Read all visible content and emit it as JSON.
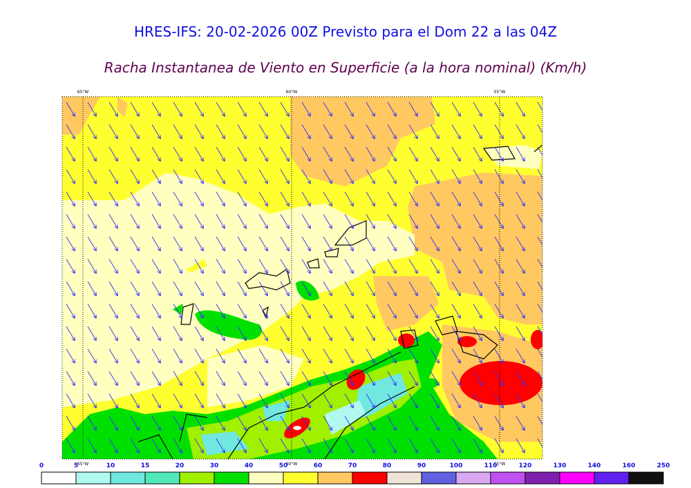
{
  "header": {
    "title": "HRES-IFS: 20-02-2026 00Z Previsto para el Dom 22 a las 04Z",
    "subtitle": "Racha Instantanea de Viento en Superficie (a la hora nominal) (Km/h)"
  },
  "map": {
    "lon_labels_top": [
      "65°W",
      "60°W",
      "55°W"
    ],
    "lon_labels_bottom": [
      "65°W",
      "60°W",
      "55°W"
    ]
  },
  "legend": {
    "labels": [
      0,
      5,
      10,
      15,
      20,
      30,
      40,
      50,
      60,
      70,
      80,
      90,
      100,
      110,
      120,
      130,
      140,
      160,
      250
    ],
    "colors": [
      "#ffffff",
      "#b0f8f0",
      "#70e8e0",
      "#50e8b8",
      "#a0f000",
      "#00e000",
      "#ffffc0",
      "#ffff30",
      "#ffc860",
      "#ff0000",
      "#f0e4d8",
      "#6060e0",
      "#d8a8f0",
      "#c050f0",
      "#8020b0",
      "#ff00ff",
      "#6020f0",
      "#101010"
    ]
  }
}
